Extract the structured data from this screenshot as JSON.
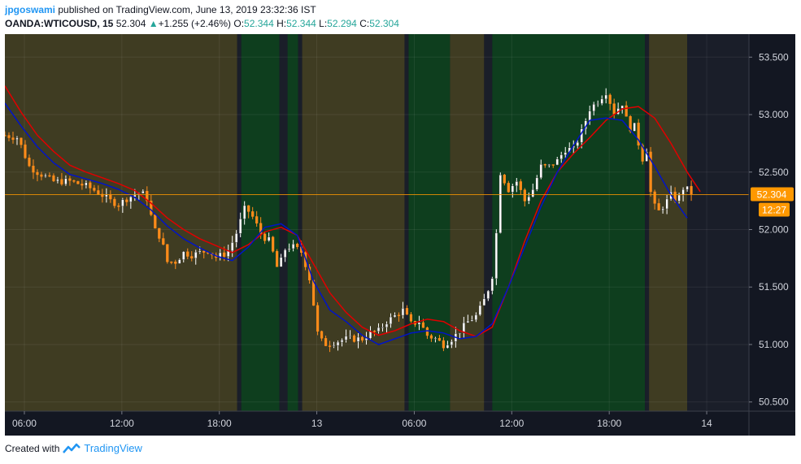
{
  "header": {
    "author": "jpgoswami",
    "published_text": "published on TradingView.com, June 13, 2019 23:32:36 IST",
    "symbol": "OANDA:WTICOUSD, 15",
    "last_price": "52.304",
    "change": "+1.255 (+2.46%)",
    "open_label": "O:",
    "open": "52.344",
    "high_label": "H:",
    "high": "52.344",
    "low_label": "L:",
    "low": "52.294",
    "close_label": "C:",
    "close": "52.304"
  },
  "footer": {
    "created_with": "Created with",
    "brand": "TradingView"
  },
  "colors": {
    "bull": "#ffffff",
    "bull_border": "#333333",
    "bear": "#ff8c1a",
    "red_line": "#e00000",
    "blue_line": "#0014c8",
    "zone_olive": "#3f3c22",
    "zone_green": "#0e3e1e",
    "zone_dark": "#1a1e29",
    "price_line": "#ff9800",
    "axis_bg": "#131722",
    "axis_text": "#d1d4dc"
  },
  "chart_data": {
    "type": "candlestick",
    "y_axis": {
      "min": 50.42,
      "max": 53.7,
      "ticks": [
        "50.500",
        "51.000",
        "51.500",
        "52.000",
        "52.500",
        "53.000",
        "53.500"
      ]
    },
    "x_axis": {
      "ticks": [
        {
          "label": "06:00",
          "t": 1.2
        },
        {
          "label": "12:00",
          "t": 7.2
        },
        {
          "label": "18:00",
          "t": 13.2
        },
        {
          "label": "13",
          "t": 19.2
        },
        {
          "label": "06:00",
          "t": 25.2
        },
        {
          "label": "12:00",
          "t": 31.2
        },
        {
          "label": "18:00",
          "t": 37.2
        },
        {
          "label": "14",
          "t": 43.2
        }
      ],
      "range": [
        0,
        45.8
      ]
    },
    "last_price_label": "52.304",
    "countdown_label": "12:27",
    "last_price": 52.304,
    "zones": [
      {
        "from": 0.0,
        "to": 14.3,
        "color": "olive"
      },
      {
        "from": 14.3,
        "to": 14.55,
        "color": "dark"
      },
      {
        "from": 14.55,
        "to": 16.9,
        "color": "green"
      },
      {
        "from": 16.9,
        "to": 17.4,
        "color": "dark"
      },
      {
        "from": 17.4,
        "to": 18.05,
        "color": "green"
      },
      {
        "from": 18.05,
        "to": 18.3,
        "color": "dark"
      },
      {
        "from": 18.3,
        "to": 24.6,
        "color": "olive"
      },
      {
        "from": 24.6,
        "to": 24.85,
        "color": "dark"
      },
      {
        "from": 24.85,
        "to": 27.4,
        "color": "green"
      },
      {
        "from": 27.4,
        "to": 29.5,
        "color": "olive"
      },
      {
        "from": 29.5,
        "to": 30.0,
        "color": "dark"
      },
      {
        "from": 30.0,
        "to": 39.4,
        "color": "green"
      },
      {
        "from": 39.4,
        "to": 39.65,
        "color": "dark"
      },
      {
        "from": 39.65,
        "to": 42.0,
        "color": "olive"
      },
      {
        "from": 42.0,
        "to": 45.8,
        "color": "dark"
      }
    ],
    "series_red": [
      [
        0.0,
        53.25
      ],
      [
        1.0,
        53.02
      ],
      [
        2.0,
        52.82
      ],
      [
        3.0,
        52.68
      ],
      [
        4.0,
        52.56
      ],
      [
        5.0,
        52.5
      ],
      [
        6.0,
        52.45
      ],
      [
        7.0,
        52.4
      ],
      [
        8.0,
        52.34
      ],
      [
        9.0,
        52.23
      ],
      [
        10.0,
        52.1
      ],
      [
        11.0,
        52.0
      ],
      [
        12.0,
        51.92
      ],
      [
        13.0,
        51.86
      ],
      [
        14.0,
        51.8
      ],
      [
        15.0,
        51.87
      ],
      [
        16.0,
        51.98
      ],
      [
        17.0,
        52.02
      ],
      [
        18.0,
        51.95
      ],
      [
        19.0,
        51.7
      ],
      [
        20.0,
        51.45
      ],
      [
        21.0,
        51.28
      ],
      [
        22.0,
        51.15
      ],
      [
        23.0,
        51.08
      ],
      [
        24.0,
        51.12
      ],
      [
        25.0,
        51.18
      ],
      [
        26.0,
        51.22
      ],
      [
        27.0,
        51.2
      ],
      [
        28.0,
        51.12
      ],
      [
        29.0,
        51.07
      ],
      [
        30.0,
        51.15
      ],
      [
        31.0,
        51.5
      ],
      [
        32.0,
        51.9
      ],
      [
        33.0,
        52.25
      ],
      [
        34.0,
        52.5
      ],
      [
        35.0,
        52.66
      ],
      [
        36.0,
        52.8
      ],
      [
        37.0,
        52.95
      ],
      [
        38.0,
        53.05
      ],
      [
        39.0,
        53.07
      ],
      [
        40.0,
        52.97
      ],
      [
        41.0,
        52.75
      ],
      [
        42.0,
        52.5
      ],
      [
        42.8,
        52.33
      ]
    ],
    "series_blue": [
      [
        0.0,
        53.1
      ],
      [
        1.0,
        52.9
      ],
      [
        2.0,
        52.72
      ],
      [
        3.0,
        52.58
      ],
      [
        4.0,
        52.48
      ],
      [
        5.0,
        52.44
      ],
      [
        6.0,
        52.4
      ],
      [
        7.0,
        52.35
      ],
      [
        8.0,
        52.28
      ],
      [
        9.0,
        52.17
      ],
      [
        10.0,
        52.03
      ],
      [
        11.0,
        51.92
      ],
      [
        12.0,
        51.84
      ],
      [
        13.0,
        51.77
      ],
      [
        14.0,
        51.73
      ],
      [
        15.0,
        51.85
      ],
      [
        16.0,
        52.02
      ],
      [
        17.0,
        52.05
      ],
      [
        18.0,
        51.95
      ],
      [
        19.0,
        51.55
      ],
      [
        20.0,
        51.3
      ],
      [
        21.0,
        51.2
      ],
      [
        22.0,
        51.08
      ],
      [
        23.0,
        51.0
      ],
      [
        24.0,
        51.05
      ],
      [
        25.0,
        51.1
      ],
      [
        26.0,
        51.12
      ],
      [
        27.0,
        51.1
      ],
      [
        28.0,
        51.05
      ],
      [
        29.0,
        51.07
      ],
      [
        30.0,
        51.18
      ],
      [
        31.0,
        51.5
      ],
      [
        32.0,
        51.85
      ],
      [
        33.0,
        52.2
      ],
      [
        34.0,
        52.5
      ],
      [
        35.0,
        52.73
      ],
      [
        36.0,
        52.95
      ],
      [
        37.0,
        52.97
      ],
      [
        38.0,
        52.95
      ],
      [
        39.0,
        52.78
      ],
      [
        40.0,
        52.55
      ],
      [
        41.0,
        52.3
      ],
      [
        42.0,
        52.1
      ]
    ],
    "candles_anchor": [
      [
        0.0,
        52.82
      ],
      [
        0.8,
        52.8
      ],
      [
        1.5,
        52.55
      ],
      [
        2.0,
        52.5
      ],
      [
        3.0,
        52.42
      ],
      [
        4.0,
        52.42
      ],
      [
        5.0,
        52.38
      ],
      [
        5.8,
        52.32
      ],
      [
        6.5,
        52.25
      ],
      [
        7.0,
        52.22
      ],
      [
        7.6,
        52.28
      ],
      [
        8.3,
        52.32
      ],
      [
        8.7,
        52.3
      ],
      [
        9.2,
        52.0
      ],
      [
        9.6,
        51.93
      ],
      [
        10.0,
        51.72
      ],
      [
        10.5,
        51.72
      ],
      [
        11.0,
        51.8
      ],
      [
        11.5,
        51.78
      ],
      [
        12.0,
        51.8
      ],
      [
        12.5,
        51.82
      ],
      [
        13.0,
        51.76
      ],
      [
        13.7,
        51.8
      ],
      [
        14.2,
        51.95
      ],
      [
        14.8,
        52.2
      ],
      [
        15.3,
        52.1
      ],
      [
        15.8,
        51.95
      ],
      [
        16.3,
        51.9
      ],
      [
        16.8,
        51.65
      ],
      [
        17.3,
        51.85
      ],
      [
        17.8,
        51.85
      ],
      [
        18.3,
        51.8
      ],
      [
        18.8,
        51.55
      ],
      [
        19.3,
        51.05
      ],
      [
        19.8,
        51.0
      ],
      [
        20.5,
        51.03
      ],
      [
        21.0,
        51.05
      ],
      [
        21.5,
        51.05
      ],
      [
        22.0,
        51.05
      ],
      [
        22.5,
        51.1
      ],
      [
        23.0,
        51.12
      ],
      [
        23.5,
        51.2
      ],
      [
        24.0,
        51.25
      ],
      [
        24.5,
        51.3
      ],
      [
        25.0,
        51.18
      ],
      [
        25.5,
        51.2
      ],
      [
        26.0,
        51.08
      ],
      [
        26.5,
        51.05
      ],
      [
        27.0,
        51.0
      ],
      [
        27.5,
        51.05
      ],
      [
        28.0,
        51.12
      ],
      [
        28.5,
        51.2
      ],
      [
        29.0,
        51.25
      ],
      [
        29.4,
        51.35
      ],
      [
        29.8,
        51.5
      ],
      [
        30.1,
        51.65
      ],
      [
        30.5,
        52.5
      ],
      [
        31.0,
        52.35
      ],
      [
        31.5,
        52.42
      ],
      [
        32.0,
        52.25
      ],
      [
        32.5,
        52.35
      ],
      [
        33.0,
        52.55
      ],
      [
        33.5,
        52.55
      ],
      [
        34.0,
        52.6
      ],
      [
        34.5,
        52.7
      ],
      [
        35.0,
        52.7
      ],
      [
        35.5,
        52.85
      ],
      [
        36.0,
        53.05
      ],
      [
        36.5,
        53.12
      ],
      [
        37.0,
        53.2
      ],
      [
        37.5,
        53.02
      ],
      [
        38.0,
        53.1
      ],
      [
        38.4,
        52.88
      ],
      [
        38.8,
        52.9
      ],
      [
        39.2,
        52.6
      ],
      [
        39.5,
        52.7
      ],
      [
        39.8,
        52.25
      ],
      [
        40.2,
        52.15
      ],
      [
        40.6,
        52.22
      ],
      [
        41.0,
        52.3
      ],
      [
        41.4,
        52.25
      ],
      [
        41.8,
        52.38
      ],
      [
        42.2,
        52.32
      ]
    ]
  }
}
